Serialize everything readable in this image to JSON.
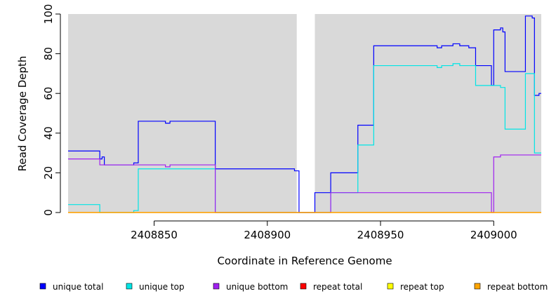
{
  "chart_data": {
    "type": "line",
    "step": true,
    "xlabel": "Coordinate in Reference Genome",
    "ylabel": "Read Coverage Depth",
    "xlim": [
      2408812,
      2409021
    ],
    "ylim": [
      0,
      100
    ],
    "xticks": [
      2408850,
      2408900,
      2408950,
      2409000
    ],
    "yticks": [
      0,
      20,
      40,
      60,
      80,
      100
    ],
    "background_color": "#d9d9d9",
    "shaded_regions": [
      [
        2408812,
        2408913
      ],
      [
        2408921,
        2409021
      ]
    ],
    "legend_position": "bottom",
    "series": [
      {
        "name": "unique total",
        "color": "#0000ff",
        "points": [
          [
            2408812,
            31
          ],
          [
            2408826,
            31
          ],
          [
            2408826,
            27
          ],
          [
            2408827,
            27
          ],
          [
            2408827,
            28
          ],
          [
            2408828,
            28
          ],
          [
            2408828,
            24
          ],
          [
            2408841,
            24
          ],
          [
            2408841,
            25
          ],
          [
            2408843,
            25
          ],
          [
            2408843,
            46
          ],
          [
            2408855,
            46
          ],
          [
            2408855,
            45
          ],
          [
            2408857,
            45
          ],
          [
            2408857,
            46
          ],
          [
            2408877,
            46
          ],
          [
            2408877,
            22
          ],
          [
            2408912,
            22
          ],
          [
            2408912,
            21
          ],
          [
            2408914,
            21
          ],
          [
            2408914,
            0
          ],
          [
            2408921,
            0
          ],
          [
            2408921,
            10
          ],
          [
            2408928,
            10
          ],
          [
            2408928,
            20
          ],
          [
            2408940,
            20
          ],
          [
            2408940,
            44
          ],
          [
            2408947,
            44
          ],
          [
            2408947,
            84
          ],
          [
            2408975,
            84
          ],
          [
            2408975,
            83
          ],
          [
            2408977,
            83
          ],
          [
            2408977,
            84
          ],
          [
            2408982,
            84
          ],
          [
            2408982,
            85
          ],
          [
            2408985,
            85
          ],
          [
            2408985,
            84
          ],
          [
            2408989,
            84
          ],
          [
            2408989,
            83
          ],
          [
            2408992,
            83
          ],
          [
            2408992,
            74
          ],
          [
            2408999,
            74
          ],
          [
            2408999,
            64
          ],
          [
            2409000,
            64
          ],
          [
            2409000,
            92
          ],
          [
            2409003,
            92
          ],
          [
            2409003,
            93
          ],
          [
            2409004,
            93
          ],
          [
            2409004,
            91
          ],
          [
            2409005,
            91
          ],
          [
            2409005,
            71
          ],
          [
            2409014,
            71
          ],
          [
            2409014,
            99
          ],
          [
            2409017,
            99
          ],
          [
            2409017,
            98
          ],
          [
            2409018,
            98
          ],
          [
            2409018,
            59
          ],
          [
            2409020,
            59
          ],
          [
            2409020,
            60
          ],
          [
            2409021,
            60
          ]
        ]
      },
      {
        "name": "unique top",
        "color": "#00e5e5",
        "points": [
          [
            2408812,
            4
          ],
          [
            2408826,
            4
          ],
          [
            2408826,
            0
          ],
          [
            2408841,
            0
          ],
          [
            2408841,
            1
          ],
          [
            2408843,
            1
          ],
          [
            2408843,
            22
          ],
          [
            2408877,
            22
          ],
          [
            2408877,
            0
          ],
          [
            2408928,
            0
          ],
          [
            2408928,
            10
          ],
          [
            2408940,
            10
          ],
          [
            2408940,
            34
          ],
          [
            2408947,
            34
          ],
          [
            2408947,
            74
          ],
          [
            2408975,
            74
          ],
          [
            2408975,
            73
          ],
          [
            2408977,
            73
          ],
          [
            2408977,
            74
          ],
          [
            2408982,
            74
          ],
          [
            2408982,
            75
          ],
          [
            2408985,
            75
          ],
          [
            2408985,
            74
          ],
          [
            2408992,
            74
          ],
          [
            2408992,
            64
          ],
          [
            2409003,
            64
          ],
          [
            2409003,
            63
          ],
          [
            2409005,
            63
          ],
          [
            2409005,
            42
          ],
          [
            2409014,
            42
          ],
          [
            2409014,
            70
          ],
          [
            2409018,
            70
          ],
          [
            2409018,
            30
          ],
          [
            2409021,
            30
          ]
        ]
      },
      {
        "name": "unique bottom",
        "color": "#a020f0",
        "points": [
          [
            2408812,
            27
          ],
          [
            2408826,
            27
          ],
          [
            2408826,
            24
          ],
          [
            2408855,
            24
          ],
          [
            2408855,
            23
          ],
          [
            2408857,
            23
          ],
          [
            2408857,
            24
          ],
          [
            2408877,
            24
          ],
          [
            2408877,
            0
          ],
          [
            2408928,
            0
          ],
          [
            2408928,
            10
          ],
          [
            2408999,
            10
          ],
          [
            2408999,
            0
          ],
          [
            2409000,
            0
          ],
          [
            2409000,
            28
          ],
          [
            2409003,
            28
          ],
          [
            2409003,
            29
          ],
          [
            2409021,
            29
          ]
        ]
      },
      {
        "name": "repeat total",
        "color": "#ff0000",
        "points": [
          [
            2408812,
            0
          ],
          [
            2409021,
            0
          ]
        ]
      },
      {
        "name": "repeat top",
        "color": "#ffff00",
        "points": [
          [
            2408812,
            0
          ],
          [
            2409021,
            0
          ]
        ]
      },
      {
        "name": "repeat bottom",
        "color": "#ffa500",
        "points": [
          [
            2408812,
            0
          ],
          [
            2409021,
            0
          ]
        ]
      }
    ]
  }
}
